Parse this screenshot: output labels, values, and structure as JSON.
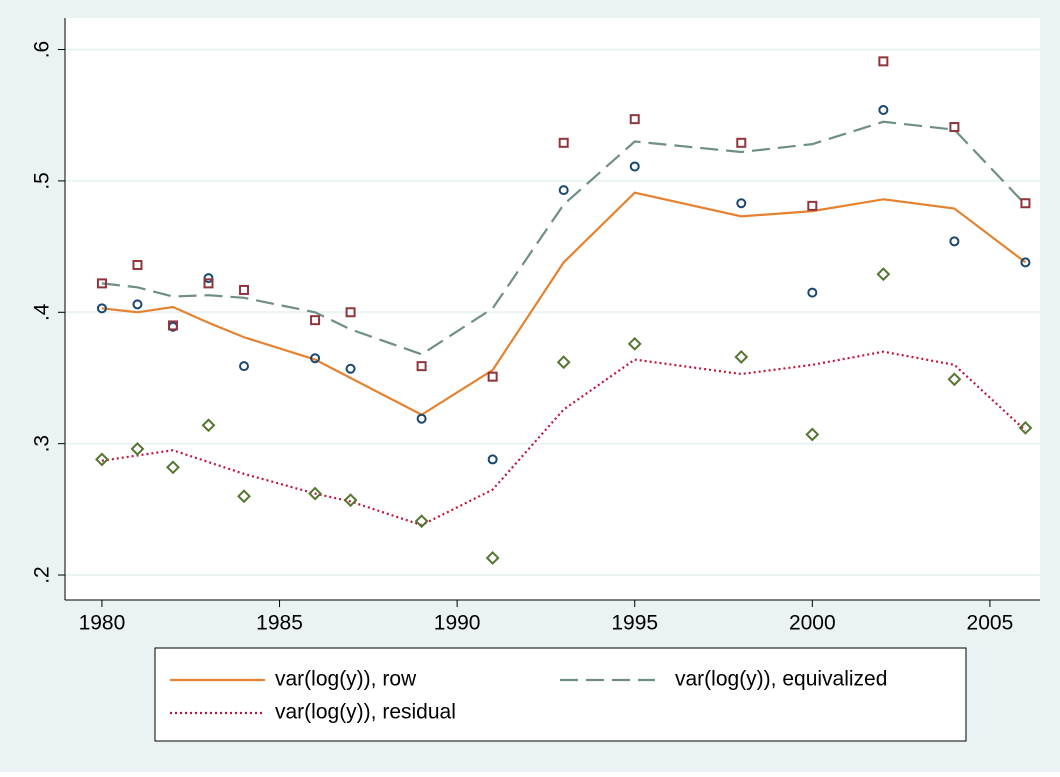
{
  "chart_data": {
    "type": "line",
    "x": [
      1980,
      1981,
      1982,
      1983,
      1984,
      1986,
      1987,
      1989,
      1991,
      1993,
      1995,
      1998,
      2000,
      2002,
      2004,
      2006
    ],
    "xlim": [
      1978.96,
      2006.41
    ],
    "xticks": [
      1980,
      1985,
      1990,
      1995,
      2000,
      2005
    ],
    "ylim": [
      0.181,
      0.624
    ],
    "yticks": [
      {
        "value": 0.2,
        "label": ".2"
      },
      {
        "value": 0.3,
        "label": ".3"
      },
      {
        "value": 0.4,
        "label": ".4"
      },
      {
        "value": 0.5,
        "label": ".5"
      },
      {
        "value": 0.6,
        "label": ".6"
      }
    ],
    "grid": true,
    "series": [
      {
        "name": "var(log(y)), row",
        "color": "#e5822f",
        "dash": "solid",
        "values": [
          0.403,
          0.4,
          0.404,
          0.392,
          0.381,
          0.364,
          0.35,
          0.322,
          0.356,
          0.438,
          0.491,
          0.473,
          0.477,
          0.486,
          0.479,
          0.438
        ]
      },
      {
        "name": "var(log(y)), equivalized",
        "color": "#6f8f85",
        "dash": "dashed",
        "values": [
          0.422,
          0.419,
          0.412,
          0.413,
          0.411,
          0.4,
          0.387,
          0.368,
          0.403,
          0.482,
          0.53,
          0.522,
          0.528,
          0.545,
          0.539,
          0.482
        ]
      },
      {
        "name": "var(log(y)), residual",
        "color": "#c0143c",
        "dash": "dotted",
        "values": [
          0.287,
          0.291,
          0.295,
          0.286,
          0.277,
          0.262,
          0.256,
          0.238,
          0.265,
          0.326,
          0.364,
          0.353,
          0.36,
          0.37,
          0.36,
          0.31
        ]
      }
    ],
    "markers": [
      {
        "marker": "circle",
        "color": "#1a476f",
        "values": [
          0.403,
          0.406,
          0.389,
          0.426,
          0.359,
          0.365,
          0.357,
          0.319,
          0.288,
          0.493,
          0.511,
          0.483,
          0.415,
          0.554,
          0.454,
          0.438
        ]
      },
      {
        "marker": "square",
        "color": "#90353b",
        "values": [
          0.422,
          0.436,
          0.39,
          0.422,
          0.417,
          0.394,
          0.4,
          0.359,
          0.351,
          0.529,
          0.547,
          0.529,
          0.481,
          0.591,
          0.541,
          0.483
        ]
      },
      {
        "marker": "diamond",
        "color": "#55752f",
        "values": [
          0.288,
          0.296,
          0.282,
          0.314,
          0.26,
          0.262,
          0.257,
          0.241,
          0.213,
          0.362,
          0.376,
          0.366,
          0.307,
          0.429,
          0.349,
          0.312
        ]
      }
    ]
  }
}
